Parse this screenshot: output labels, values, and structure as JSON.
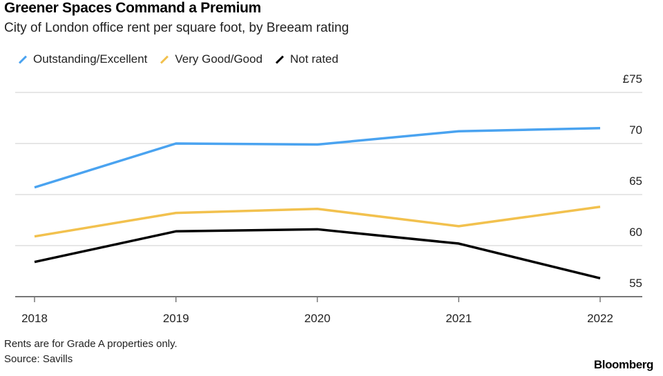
{
  "chart_data": {
    "type": "line",
    "title": "Greener Spaces Command a Premium",
    "subtitle": "City of London office rent per square foot, by Breeam rating",
    "x": [
      "2018",
      "2019",
      "2020",
      "2021",
      "2022"
    ],
    "yticks": [
      {
        "v": 75,
        "label": "£75"
      },
      {
        "v": 70,
        "label": "70"
      },
      {
        "v": 65,
        "label": "65"
      },
      {
        "v": 60,
        "label": "60"
      },
      {
        "v": 55,
        "label": "55"
      }
    ],
    "ylim": [
      53.5,
      76
    ],
    "grid": true,
    "legend_position": "top-left",
    "series": [
      {
        "name": "Outstanding/Excellent",
        "color": "#4aa3f0",
        "values": [
          65.7,
          70.0,
          69.9,
          71.2,
          71.5
        ]
      },
      {
        "name": "Very Good/Good",
        "color": "#f2c14e",
        "values": [
          60.9,
          63.2,
          63.6,
          61.9,
          63.8
        ]
      },
      {
        "name": "Not rated",
        "color": "#000000",
        "values": [
          58.4,
          61.4,
          61.6,
          60.2,
          56.8
        ]
      }
    ]
  },
  "notes": [
    "Rents are for Grade A properties only.",
    "Source: Savills"
  ],
  "brand": "Bloomberg"
}
